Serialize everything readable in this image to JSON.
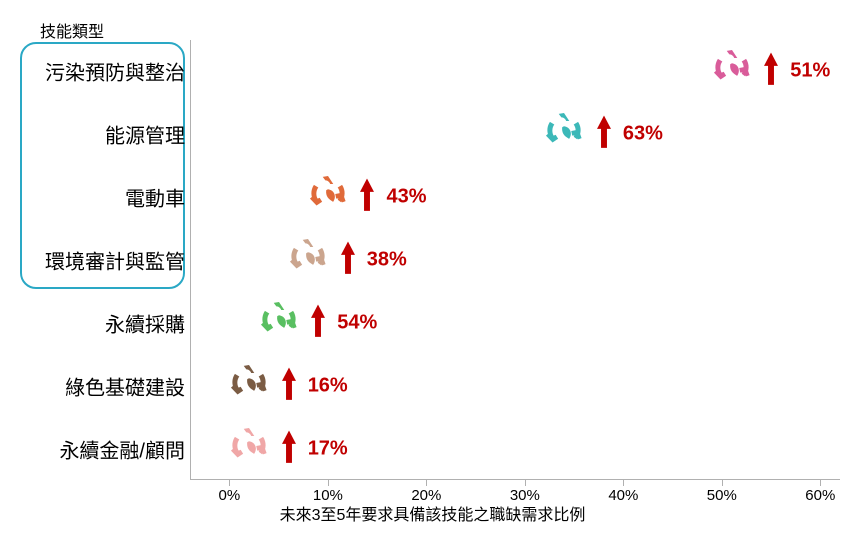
{
  "chart": {
    "type": "dot-plot-horizontal",
    "y_title": "技能類型",
    "x_title": "未來3至5年要求具備該技能之職缺需求比例",
    "x_axis": {
      "min": -4,
      "max": 62,
      "ticks": [
        0,
        10,
        20,
        30,
        40,
        50,
        60
      ],
      "tick_labels": [
        "0%",
        "10%",
        "20%",
        "30%",
        "40%",
        "50%",
        "60%"
      ]
    },
    "background_color": "#ffffff",
    "axis_color": "#b0b0b0",
    "value_color": "#c00000",
    "arrow_color": "#c00000",
    "arrow_outline": "#ffffff",
    "label_fontsize": 20,
    "value_fontsize": 20,
    "title_fontsize": 16,
    "highlight_box": {
      "border_color": "#2aa8c5",
      "row_start": 0,
      "row_end": 3
    },
    "rows": [
      {
        "label": "污染預防與整治",
        "x": 51,
        "value": "51%",
        "icon_color": "#d95c9a"
      },
      {
        "label": "能源管理",
        "x": 34,
        "value": "63%",
        "icon_color": "#3cb8b8"
      },
      {
        "label": "電動車",
        "x": 10,
        "value": "43%",
        "icon_color": "#e06a3a"
      },
      {
        "label": "環境審計與監管",
        "x": 8,
        "value": "38%",
        "icon_color": "#cba58e"
      },
      {
        "label": "永續採購",
        "x": 5,
        "value": "54%",
        "icon_color": "#59bf61"
      },
      {
        "label": "綠色基礎建設",
        "x": 2,
        "value": "16%",
        "icon_color": "#7b5c44"
      },
      {
        "label": "永續金融/顧問",
        "x": 2,
        "value": "17%",
        "icon_color": "#f0a7a7"
      }
    ],
    "icon_size": 44,
    "arrow_size": 38
  }
}
